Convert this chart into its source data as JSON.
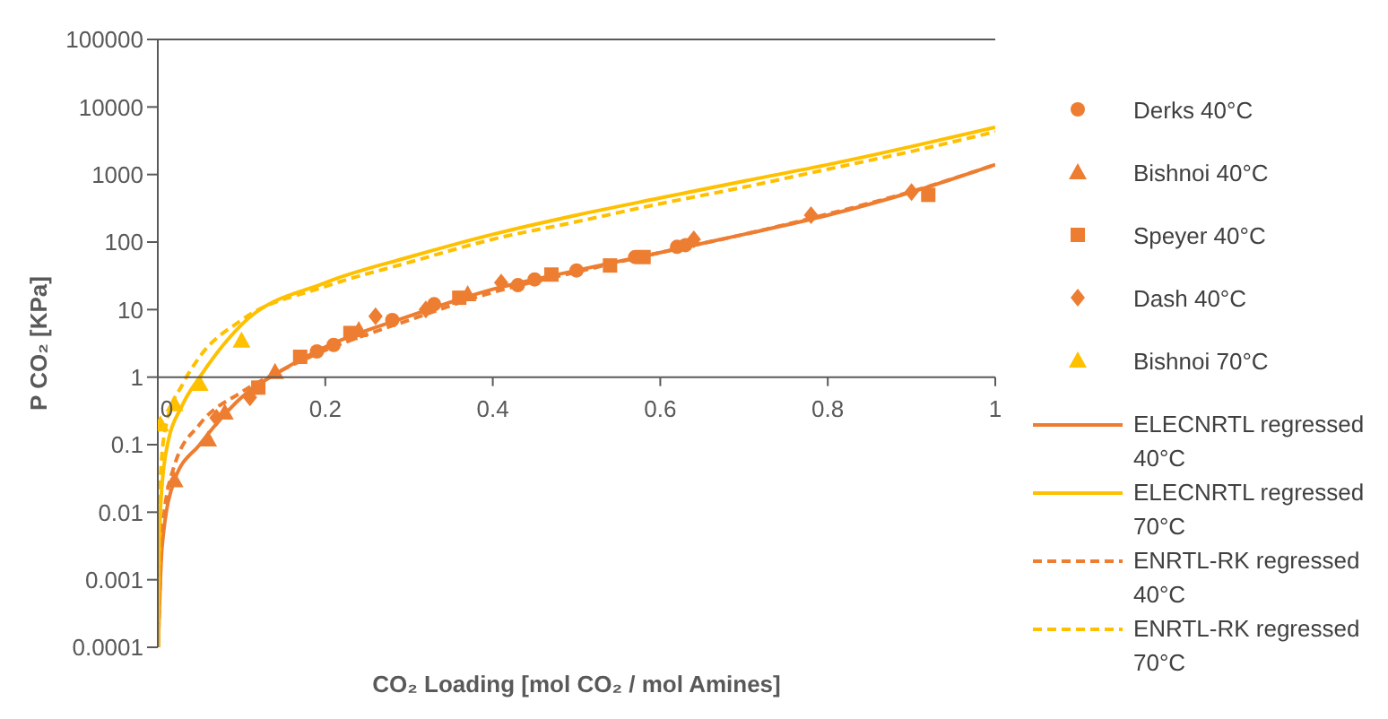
{
  "chart_data": {
    "type": "scatter",
    "xlabel": "CO₂ Loading [mol CO₂ / mol Amines]",
    "ylabel": "P CO₂ [KPa]",
    "log": "y",
    "xlim": [
      0,
      1
    ],
    "xticks": [
      0,
      0.2,
      0.4,
      0.6,
      0.8,
      1
    ],
    "ylim": [
      0.0001,
      100000
    ],
    "yticks": [
      0.0001,
      0.001,
      0.01,
      0.1,
      1,
      10,
      100,
      1000,
      10000,
      100000
    ],
    "grid": false,
    "legend": "right",
    "series": [
      {
        "name": "Derks 40°C",
        "marker": "circle",
        "color": "#ed7d31",
        "x": [
          0.19,
          0.21,
          0.28,
          0.33,
          0.43,
          0.45,
          0.5,
          0.57,
          0.62,
          0.63
        ],
        "values": [
          2.4,
          3,
          7,
          12,
          23,
          28,
          38,
          60,
          85,
          90
        ]
      },
      {
        "name": "Bishnoi 40°C",
        "marker": "triangle",
        "color": "#ed7d31",
        "x": [
          0.02,
          0.06,
          0.08,
          0.14,
          0.24,
          0.37
        ],
        "values": [
          0.03,
          0.12,
          0.3,
          1.2,
          5,
          17
        ]
      },
      {
        "name": "Speyer 40°C",
        "marker": "square",
        "color": "#ed7d31",
        "x": [
          0.12,
          0.17,
          0.23,
          0.36,
          0.47,
          0.54,
          0.58,
          0.92
        ],
        "values": [
          0.7,
          2,
          4.5,
          15,
          33,
          45,
          60,
          500
        ]
      },
      {
        "name": "Dash 40°C",
        "marker": "diamond",
        "color": "#ed7d31",
        "x": [
          0.07,
          0.11,
          0.26,
          0.32,
          0.41,
          0.64,
          0.78,
          0.9
        ],
        "values": [
          0.25,
          0.5,
          8,
          10,
          25,
          110,
          250,
          550
        ]
      },
      {
        "name": "Bishnoi 70°C",
        "marker": "triangle",
        "color": "#ffc000",
        "x": [
          0.003,
          0.02,
          0.05,
          0.1
        ],
        "values": [
          0.2,
          0.4,
          0.8,
          3.5
        ]
      },
      {
        "name": "ELECNRTL regressed 40°C",
        "type": "line",
        "marker": "none",
        "line_style": "solid",
        "color": "#ed7d31",
        "x": [
          0.0005,
          0.005,
          0.02,
          0.05,
          0.1,
          0.15,
          0.2,
          0.3,
          0.4,
          0.5,
          0.6,
          0.7,
          0.8,
          0.9,
          1
        ],
        "values": [
          0.0001,
          0.003,
          0.03,
          0.1,
          0.5,
          1.3,
          2.8,
          8,
          20,
          38,
          70,
          130,
          250,
          550,
          1400
        ]
      },
      {
        "name": "ELECNRTL regressed 70°C",
        "type": "line",
        "marker": "none",
        "line_style": "solid",
        "color": "#ffc000",
        "x": [
          0.0005,
          0.003,
          0.01,
          0.03,
          0.05,
          0.1,
          0.2,
          0.3,
          0.4,
          0.5,
          0.6,
          0.7,
          0.8,
          0.9,
          1
        ],
        "values": [
          0.0001,
          0.01,
          0.08,
          0.4,
          1,
          6,
          25,
          60,
          130,
          250,
          450,
          800,
          1400,
          2600,
          5000
        ]
      },
      {
        "name": "ENRTL-RK regressed 40°C",
        "type": "line",
        "marker": "none",
        "line_style": "dashed",
        "color": "#ed7d31",
        "x": [
          0.0005,
          0.005,
          0.02,
          0.05,
          0.1,
          0.15,
          0.2,
          0.3,
          0.4,
          0.5,
          0.6,
          0.7,
          0.8,
          0.9,
          1
        ],
        "values": [
          0.0001,
          0.005,
          0.05,
          0.2,
          0.6,
          1.3,
          2.5,
          7,
          18,
          36,
          70,
          130,
          260,
          560,
          1400
        ]
      },
      {
        "name": "ENRTL-RK regressed 70°C",
        "type": "line",
        "marker": "none",
        "line_style": "dashed",
        "color": "#ffc000",
        "x": [
          0.0005,
          0.003,
          0.01,
          0.03,
          0.05,
          0.1,
          0.2,
          0.3,
          0.4,
          0.5,
          0.6,
          0.7,
          0.8,
          0.9,
          1
        ],
        "values": [
          0.0001,
          0.03,
          0.2,
          0.8,
          2,
          7,
          22,
          50,
          110,
          200,
          370,
          650,
          1200,
          2200,
          4300
        ]
      }
    ]
  }
}
